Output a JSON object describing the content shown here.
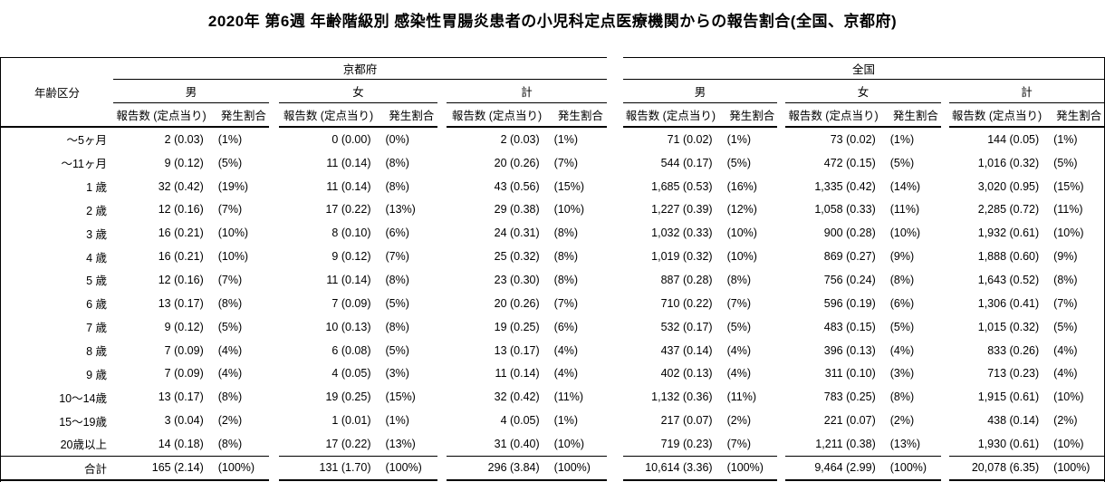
{
  "title": "2020年 第6週 年齢階級別 感染性胃腸炎患者の小児科定点医療機関からの報告割合(全国、京都府)",
  "colors": {
    "text": "#000000",
    "background": "#ffffff",
    "border": "#000000"
  },
  "table": {
    "age_header": "年齢区分",
    "region_headers": [
      "京都府",
      "全国"
    ],
    "sex_headers": [
      "男",
      "女",
      "計"
    ],
    "sub_headers": {
      "count": "報告数 (定点当り)",
      "share": "発生割合"
    },
    "rows": [
      {
        "age": "～5ヶ月",
        "cells": [
          [
            "2 (0.03)",
            "(1%)"
          ],
          [
            "0 (0.00)",
            "(0%)"
          ],
          [
            "2 (0.03)",
            "(1%)"
          ],
          [
            "71 (0.02)",
            "(1%)"
          ],
          [
            "73 (0.02)",
            "(1%)"
          ],
          [
            "144 (0.05)",
            "(1%)"
          ]
        ]
      },
      {
        "age": "～11ヶ月",
        "cells": [
          [
            "9 (0.12)",
            "(5%)"
          ],
          [
            "11 (0.14)",
            "(8%)"
          ],
          [
            "20 (0.26)",
            "(7%)"
          ],
          [
            "544 (0.17)",
            "(5%)"
          ],
          [
            "472 (0.15)",
            "(5%)"
          ],
          [
            "1,016 (0.32)",
            "(5%)"
          ]
        ]
      },
      {
        "age": "1 歳",
        "cells": [
          [
            "32 (0.42)",
            "(19%)"
          ],
          [
            "11 (0.14)",
            "(8%)"
          ],
          [
            "43 (0.56)",
            "(15%)"
          ],
          [
            "1,685 (0.53)",
            "(16%)"
          ],
          [
            "1,335 (0.42)",
            "(14%)"
          ],
          [
            "3,020 (0.95)",
            "(15%)"
          ]
        ]
      },
      {
        "age": "2 歳",
        "cells": [
          [
            "12 (0.16)",
            "(7%)"
          ],
          [
            "17 (0.22)",
            "(13%)"
          ],
          [
            "29 (0.38)",
            "(10%)"
          ],
          [
            "1,227 (0.39)",
            "(12%)"
          ],
          [
            "1,058 (0.33)",
            "(11%)"
          ],
          [
            "2,285 (0.72)",
            "(11%)"
          ]
        ]
      },
      {
        "age": "3 歳",
        "cells": [
          [
            "16 (0.21)",
            "(10%)"
          ],
          [
            "8 (0.10)",
            "(6%)"
          ],
          [
            "24 (0.31)",
            "(8%)"
          ],
          [
            "1,032 (0.33)",
            "(10%)"
          ],
          [
            "900 (0.28)",
            "(10%)"
          ],
          [
            "1,932 (0.61)",
            "(10%)"
          ]
        ]
      },
      {
        "age": "4 歳",
        "cells": [
          [
            "16 (0.21)",
            "(10%)"
          ],
          [
            "9 (0.12)",
            "(7%)"
          ],
          [
            "25 (0.32)",
            "(8%)"
          ],
          [
            "1,019 (0.32)",
            "(10%)"
          ],
          [
            "869 (0.27)",
            "(9%)"
          ],
          [
            "1,888 (0.60)",
            "(9%)"
          ]
        ]
      },
      {
        "age": "5 歳",
        "cells": [
          [
            "12 (0.16)",
            "(7%)"
          ],
          [
            "11 (0.14)",
            "(8%)"
          ],
          [
            "23 (0.30)",
            "(8%)"
          ],
          [
            "887 (0.28)",
            "(8%)"
          ],
          [
            "756 (0.24)",
            "(8%)"
          ],
          [
            "1,643 (0.52)",
            "(8%)"
          ]
        ]
      },
      {
        "age": "6 歳",
        "cells": [
          [
            "13 (0.17)",
            "(8%)"
          ],
          [
            "7 (0.09)",
            "(5%)"
          ],
          [
            "20 (0.26)",
            "(7%)"
          ],
          [
            "710 (0.22)",
            "(7%)"
          ],
          [
            "596 (0.19)",
            "(6%)"
          ],
          [
            "1,306 (0.41)",
            "(7%)"
          ]
        ]
      },
      {
        "age": "7 歳",
        "cells": [
          [
            "9 (0.12)",
            "(5%)"
          ],
          [
            "10 (0.13)",
            "(8%)"
          ],
          [
            "19 (0.25)",
            "(6%)"
          ],
          [
            "532 (0.17)",
            "(5%)"
          ],
          [
            "483 (0.15)",
            "(5%)"
          ],
          [
            "1,015 (0.32)",
            "(5%)"
          ]
        ]
      },
      {
        "age": "8 歳",
        "cells": [
          [
            "7 (0.09)",
            "(4%)"
          ],
          [
            "6 (0.08)",
            "(5%)"
          ],
          [
            "13 (0.17)",
            "(4%)"
          ],
          [
            "437 (0.14)",
            "(4%)"
          ],
          [
            "396 (0.13)",
            "(4%)"
          ],
          [
            "833 (0.26)",
            "(4%)"
          ]
        ]
      },
      {
        "age": "9 歳",
        "cells": [
          [
            "7 (0.09)",
            "(4%)"
          ],
          [
            "4 (0.05)",
            "(3%)"
          ],
          [
            "11 (0.14)",
            "(4%)"
          ],
          [
            "402 (0.13)",
            "(4%)"
          ],
          [
            "311 (0.10)",
            "(3%)"
          ],
          [
            "713 (0.23)",
            "(4%)"
          ]
        ]
      },
      {
        "age": "10～14歳",
        "cells": [
          [
            "13 (0.17)",
            "(8%)"
          ],
          [
            "19 (0.25)",
            "(15%)"
          ],
          [
            "32 (0.42)",
            "(11%)"
          ],
          [
            "1,132 (0.36)",
            "(11%)"
          ],
          [
            "783 (0.25)",
            "(8%)"
          ],
          [
            "1,915 (0.61)",
            "(10%)"
          ]
        ]
      },
      {
        "age": "15～19歳",
        "cells": [
          [
            "3 (0.04)",
            "(2%)"
          ],
          [
            "1 (0.01)",
            "(1%)"
          ],
          [
            "4 (0.05)",
            "(1%)"
          ],
          [
            "217 (0.07)",
            "(2%)"
          ],
          [
            "221 (0.07)",
            "(2%)"
          ],
          [
            "438 (0.14)",
            "(2%)"
          ]
        ]
      },
      {
        "age": "20歳以上",
        "cells": [
          [
            "14 (0.18)",
            "(8%)"
          ],
          [
            "17 (0.22)",
            "(13%)"
          ],
          [
            "31 (0.40)",
            "(10%)"
          ],
          [
            "719 (0.23)",
            "(7%)"
          ],
          [
            "1,211 (0.38)",
            "(13%)"
          ],
          [
            "1,930 (0.61)",
            "(10%)"
          ]
        ]
      },
      {
        "age": "合計",
        "is_total": true,
        "cells": [
          [
            "165 (2.14)",
            "(100%)"
          ],
          [
            "131 (1.70)",
            "(100%)"
          ],
          [
            "296 (3.84)",
            "(100%)"
          ],
          [
            "10,614 (3.36)",
            "(100%)"
          ],
          [
            "9,464 (2.99)",
            "(100%)"
          ],
          [
            "20,078 (6.35)",
            "(100%)"
          ]
        ]
      }
    ]
  },
  "chart_data": {
    "type": "table",
    "title": "2020年 第6週 年齢階級別 感染性胃腸炎患者の小児科定点医療機関からの報告割合(全国、京都府)",
    "categories": [
      "～5ヶ月",
      "～11ヶ月",
      "1 歳",
      "2 歳",
      "3 歳",
      "4 歳",
      "5 歳",
      "6 歳",
      "7 歳",
      "8 歳",
      "9 歳",
      "10～14歳",
      "15～19歳",
      "20歳以上",
      "合計"
    ],
    "series": [
      {
        "name": "京都府 男 報告数",
        "values": [
          2,
          9,
          32,
          12,
          16,
          16,
          12,
          13,
          9,
          7,
          7,
          13,
          3,
          14,
          165
        ]
      },
      {
        "name": "京都府 男 定点当り",
        "values": [
          0.03,
          0.12,
          0.42,
          0.16,
          0.21,
          0.21,
          0.16,
          0.17,
          0.12,
          0.09,
          0.09,
          0.17,
          0.04,
          0.18,
          2.14
        ]
      },
      {
        "name": "京都府 男 発生割合(%)",
        "values": [
          1,
          5,
          19,
          7,
          10,
          10,
          7,
          8,
          5,
          4,
          4,
          8,
          2,
          8,
          100
        ]
      },
      {
        "name": "京都府 女 報告数",
        "values": [
          0,
          11,
          11,
          17,
          8,
          9,
          11,
          7,
          10,
          6,
          4,
          19,
          1,
          17,
          131
        ]
      },
      {
        "name": "京都府 女 定点当り",
        "values": [
          0.0,
          0.14,
          0.14,
          0.22,
          0.1,
          0.12,
          0.14,
          0.09,
          0.13,
          0.08,
          0.05,
          0.25,
          0.01,
          0.22,
          1.7
        ]
      },
      {
        "name": "京都府 女 発生割合(%)",
        "values": [
          0,
          8,
          8,
          13,
          6,
          7,
          8,
          5,
          8,
          5,
          3,
          15,
          1,
          13,
          100
        ]
      },
      {
        "name": "京都府 計 報告数",
        "values": [
          2,
          20,
          43,
          29,
          24,
          25,
          23,
          20,
          19,
          13,
          11,
          32,
          4,
          31,
          296
        ]
      },
      {
        "name": "京都府 計 定点当り",
        "values": [
          0.03,
          0.26,
          0.56,
          0.38,
          0.31,
          0.32,
          0.3,
          0.26,
          0.25,
          0.17,
          0.14,
          0.42,
          0.05,
          0.4,
          3.84
        ]
      },
      {
        "name": "京都府 計 発生割合(%)",
        "values": [
          1,
          7,
          15,
          10,
          8,
          8,
          8,
          7,
          6,
          4,
          4,
          11,
          1,
          10,
          100
        ]
      },
      {
        "name": "全国 男 報告数",
        "values": [
          71,
          544,
          1685,
          1227,
          1032,
          1019,
          887,
          710,
          532,
          437,
          402,
          1132,
          217,
          719,
          10614
        ]
      },
      {
        "name": "全国 男 定点当り",
        "values": [
          0.02,
          0.17,
          0.53,
          0.39,
          0.33,
          0.32,
          0.28,
          0.22,
          0.17,
          0.14,
          0.13,
          0.36,
          0.07,
          0.23,
          3.36
        ]
      },
      {
        "name": "全国 男 発生割合(%)",
        "values": [
          1,
          5,
          16,
          12,
          10,
          10,
          8,
          7,
          5,
          4,
          4,
          11,
          2,
          7,
          100
        ]
      },
      {
        "name": "全国 女 報告数",
        "values": [
          73,
          472,
          1335,
          1058,
          900,
          869,
          756,
          596,
          483,
          396,
          311,
          783,
          221,
          1211,
          9464
        ]
      },
      {
        "name": "全国 女 定点当り",
        "values": [
          0.02,
          0.15,
          0.42,
          0.33,
          0.28,
          0.27,
          0.24,
          0.19,
          0.15,
          0.13,
          0.1,
          0.25,
          0.07,
          0.38,
          2.99
        ]
      },
      {
        "name": "全国 女 発生割合(%)",
        "values": [
          1,
          5,
          14,
          11,
          10,
          9,
          8,
          6,
          5,
          4,
          3,
          8,
          2,
          13,
          100
        ]
      },
      {
        "name": "全国 計 報告数",
        "values": [
          144,
          1016,
          3020,
          2285,
          1932,
          1888,
          1643,
          1306,
          1015,
          833,
          713,
          1915,
          438,
          1930,
          20078
        ]
      },
      {
        "name": "全国 計 定点当り",
        "values": [
          0.05,
          0.32,
          0.95,
          0.72,
          0.61,
          0.6,
          0.52,
          0.41,
          0.32,
          0.26,
          0.23,
          0.61,
          0.14,
          0.61,
          6.35
        ]
      },
      {
        "name": "全国 計 発生割合(%)",
        "values": [
          1,
          5,
          15,
          11,
          10,
          9,
          8,
          7,
          5,
          4,
          4,
          10,
          2,
          10,
          100
        ]
      }
    ]
  }
}
